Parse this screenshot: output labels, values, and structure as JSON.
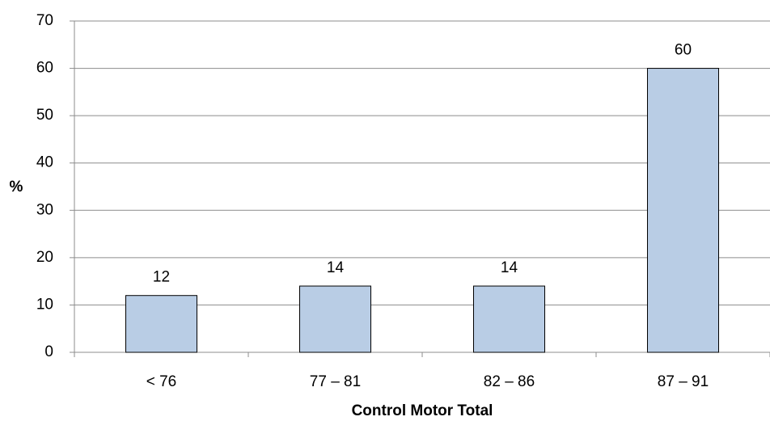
{
  "chart_data": {
    "type": "bar",
    "categories": [
      "< 76",
      "77 – 81",
      "82 – 86",
      "87 – 91"
    ],
    "values": [
      12,
      14,
      14,
      60
    ],
    "color": "#b9cde5",
    "ylabel": "%",
    "xlabel": "Control Motor Total",
    "ylim": [
      0,
      70
    ],
    "yticks": [
      0,
      10,
      20,
      30,
      40,
      50,
      60,
      70
    ],
    "grid": true
  }
}
